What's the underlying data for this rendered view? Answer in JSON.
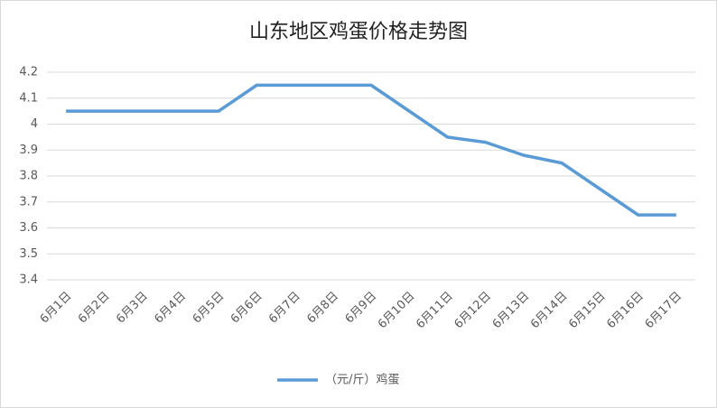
{
  "chart_data": {
    "type": "line",
    "title": "山东地区鸡蛋价格走势图",
    "categories": [
      "6月1日",
      "6月2日",
      "6月3日",
      "6月4日",
      "6月5日",
      "6月6日",
      "6月7日",
      "6月8日",
      "6月9日",
      "6月10日",
      "6月11日",
      "6月12日",
      "6月13日",
      "6月14日",
      "6月15日",
      "6月16日",
      "6月17日"
    ],
    "series": [
      {
        "name": "（元/斤）鸡蛋",
        "color": "#5b9bd5",
        "values": [
          4.05,
          4.05,
          4.05,
          4.05,
          4.05,
          4.15,
          4.15,
          4.15,
          4.15,
          4.05,
          3.95,
          3.93,
          3.88,
          3.85,
          3.75,
          3.65,
          3.65
        ]
      }
    ],
    "ylim": [
      3.4,
      4.2
    ],
    "yticks": [
      3.4,
      3.5,
      3.6,
      3.7,
      3.8,
      3.9,
      4,
      4.1,
      4.2
    ],
    "grid": true,
    "legend": "bottom"
  }
}
